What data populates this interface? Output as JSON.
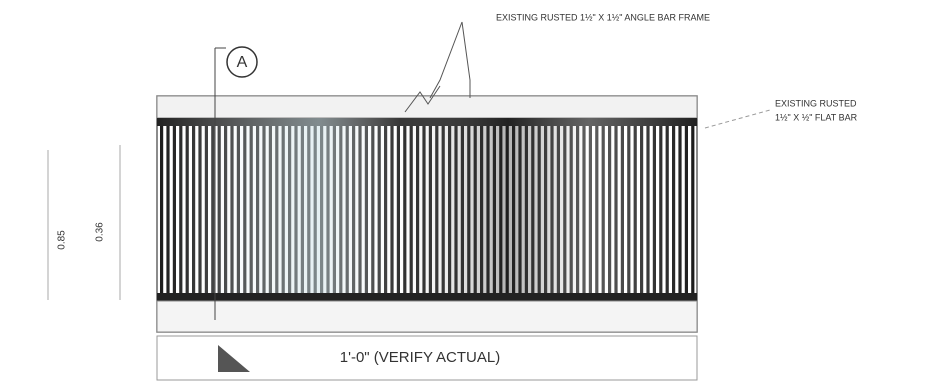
{
  "callout": {
    "label": "A"
  },
  "notes": {
    "frame": "EXISTING RUSTED 1½\" X 1½\" ANGLE BAR FRAME",
    "flat_bar_line1": "EXISTING RUSTED",
    "flat_bar_line2": "1½\" X ½\" FLAT BAR"
  },
  "dimensions": {
    "width": "1'-0\" (VERIFY ACTUAL)",
    "outer_height": "0.85",
    "inner_height": "0.36"
  }
}
